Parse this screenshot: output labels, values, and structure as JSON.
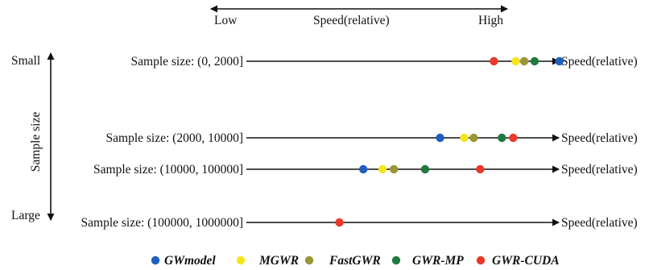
{
  "colors": {
    "gwmodel": "#1f5fbf",
    "mgwr": "#f5e61c",
    "fastgwr": "#9a9537",
    "gwrmp": "#1f7a3e",
    "gwrcuda": "#e8392b",
    "line": "#111111"
  },
  "speed_scale": {
    "low_label": "Low",
    "title": "Speed(relative)",
    "high_label": "High"
  },
  "sample_size_axis": {
    "title": "Sample size",
    "small_label": "Small",
    "large_label": "Large"
  },
  "rows": [
    {
      "label": "Sample size: (0, 2000]",
      "end_label": "Speed(relative)",
      "points": [
        {
          "method": "gwrcuda",
          "speed": 0.809
        },
        {
          "method": "mgwr",
          "speed": 0.88
        },
        {
          "method": "fastgwr",
          "speed": 0.908
        },
        {
          "method": "gwrmp",
          "speed": 0.942
        },
        {
          "method": "gwmodel",
          "speed": 1.023
        }
      ]
    },
    {
      "label": "Sample size: (2000, 10000]",
      "end_label": "Speed(relative)",
      "points": [
        {
          "method": "gwmodel",
          "speed": 0.633
        },
        {
          "method": "mgwr",
          "speed": 0.712
        },
        {
          "method": "fastgwr",
          "speed": 0.743
        },
        {
          "method": "gwrmp",
          "speed": 0.835
        },
        {
          "method": "gwrcuda",
          "speed": 0.872
        }
      ]
    },
    {
      "label": "Sample size: (10000, 100000]",
      "end_label": "Speed(relative)",
      "points": [
        {
          "method": "gwmodel",
          "speed": 0.382
        },
        {
          "method": "mgwr",
          "speed": 0.445
        },
        {
          "method": "fastgwr",
          "speed": 0.482
        },
        {
          "method": "gwrmp",
          "speed": 0.584
        },
        {
          "method": "gwrcuda",
          "speed": 0.764
        }
      ]
    },
    {
      "label": "Sample size: (100000, 1000000]",
      "end_label": "Speed(relative)",
      "points": [
        {
          "method": "gwrcuda",
          "speed": 0.304
        }
      ]
    }
  ],
  "legend": [
    {
      "method": "gwmodel",
      "label": "GWmodel"
    },
    {
      "method": "mgwr",
      "label": "MGWR"
    },
    {
      "method": "fastgwr",
      "label": "FastGWR"
    },
    {
      "method": "gwrmp",
      "label": "GWR-MP"
    },
    {
      "method": "gwrcuda",
      "label": "GWR-CUDA"
    }
  ]
}
